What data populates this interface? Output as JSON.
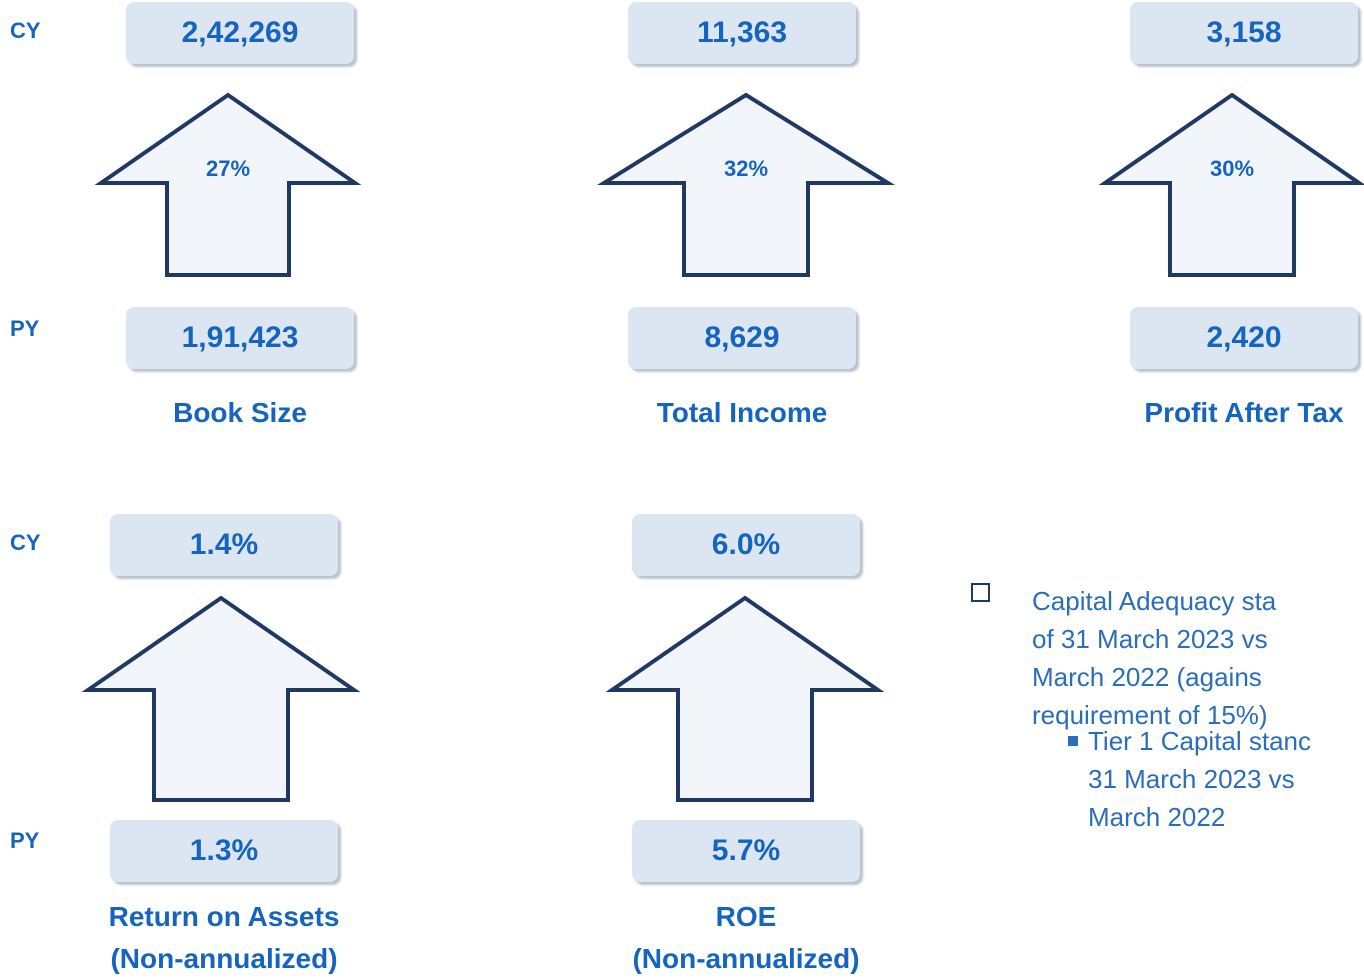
{
  "metrics": [
    {
      "cy_tag": "CY",
      "cy": "2,42,269",
      "growth": "27%",
      "py_tag": "PY",
      "py": "1,91,423",
      "label": [
        "Book Size"
      ]
    },
    {
      "cy": "11,363",
      "growth": "32%",
      "py": "8,629",
      "label": [
        "Total Income"
      ]
    },
    {
      "cy": "3,158",
      "growth": "30%",
      "py": "2,420",
      "label": [
        "Profit After Tax"
      ]
    },
    {
      "cy_tag": "CY",
      "cy": "1.4%",
      "py_tag": "PY",
      "py": "1.3%",
      "label": [
        "Return on Assets",
        "(Non-annualized)"
      ]
    },
    {
      "cy": "6.0%",
      "py": "5.7%",
      "label": [
        "ROE",
        "(Non-annualized)"
      ]
    }
  ],
  "notes": {
    "bullet": [
      "Capital Adequacy sta",
      "of 31 March 2023 vs",
      "March 2022 (agains",
      "requirement of 15%)"
    ],
    "sub_bullet": [
      "Tier 1 Capital stanc",
      "31 March 2023 vs",
      "March 2022"
    ]
  }
}
